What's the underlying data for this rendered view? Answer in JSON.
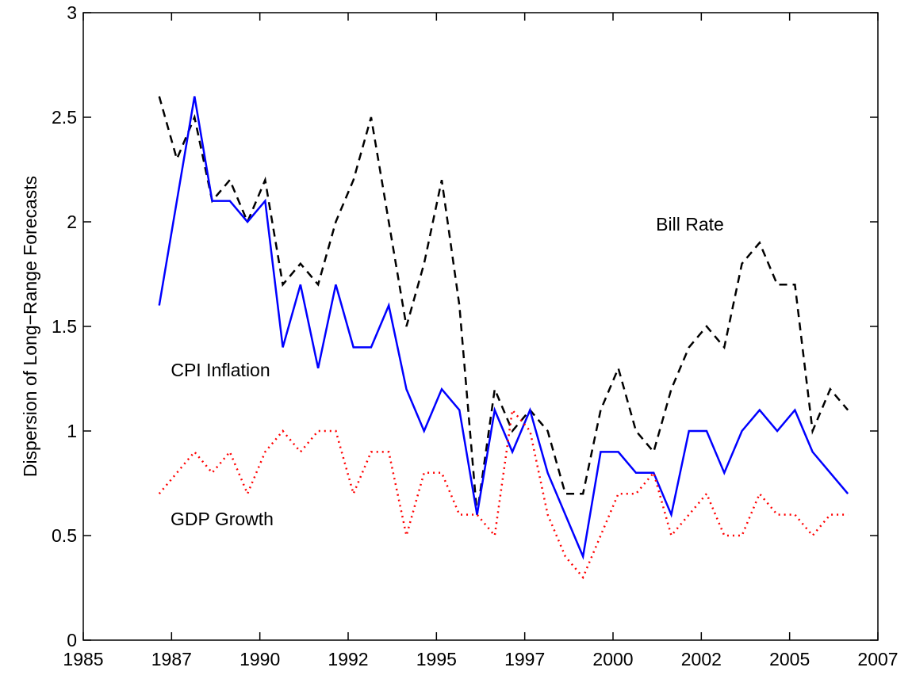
{
  "chart_data": {
    "type": "line",
    "y_label": "Dispersion of Long−Range Forecasts",
    "x": [
      1987.15,
      1987.65,
      1988.15,
      1988.65,
      1989.15,
      1989.65,
      1990.15,
      1990.65,
      1991.15,
      1991.65,
      1992.15,
      1992.65,
      1993.15,
      1993.65,
      1994.15,
      1994.65,
      1995.15,
      1995.65,
      1996.15,
      1996.65,
      1997.15,
      1997.65,
      1998.15,
      1998.65,
      1999.15,
      1999.65,
      2000.15,
      2000.65,
      2001.15,
      2001.65,
      2002.15,
      2002.65,
      2003.15,
      2003.65,
      2004.15,
      2004.65,
      2005.15,
      2005.65,
      2006.15,
      2006.65
    ],
    "series": [
      {
        "name": "Bill Rate",
        "color": "#000000",
        "style": "dashed",
        "values": [
          2.6,
          2.3,
          2.5,
          2.1,
          2.2,
          2.0,
          2.2,
          1.7,
          1.8,
          1.7,
          2.0,
          2.2,
          2.5,
          2.0,
          1.5,
          1.8,
          2.2,
          1.6,
          0.6,
          1.2,
          1.0,
          1.1,
          1.0,
          0.7,
          0.7,
          1.1,
          1.3,
          1.0,
          0.9,
          1.2,
          1.4,
          1.5,
          1.4,
          1.8,
          1.9,
          1.7,
          1.7,
          1.0,
          1.2,
          1.1
        ]
      },
      {
        "name": "CPI Inflation",
        "color": "#0000ff",
        "style": "solid",
        "values": [
          1.6,
          2.1,
          2.6,
          2.1,
          2.1,
          2.0,
          2.1,
          1.4,
          1.7,
          1.3,
          1.7,
          1.4,
          1.4,
          1.6,
          1.2,
          1.0,
          1.2,
          1.1,
          0.6,
          1.1,
          0.9,
          1.1,
          0.8,
          0.6,
          0.4,
          0.9,
          0.9,
          0.8,
          0.8,
          0.6,
          1.0,
          1.0,
          0.8,
          1.0,
          1.1,
          1.0,
          1.1,
          0.9,
          0.8,
          0.7
        ]
      },
      {
        "name": "GDP Growth",
        "color": "#ff0000",
        "style": "dotted",
        "values": [
          0.7,
          0.8,
          0.9,
          0.8,
          0.9,
          0.7,
          0.9,
          1.0,
          0.9,
          1.0,
          1.0,
          0.7,
          0.9,
          0.9,
          0.5,
          0.8,
          0.8,
          0.6,
          0.6,
          0.5,
          1.1,
          1.0,
          0.6,
          0.4,
          0.3,
          0.5,
          0.7,
          0.7,
          0.8,
          0.5,
          0.6,
          0.7,
          0.5,
          0.5,
          0.7,
          0.6,
          0.6,
          0.5,
          0.6,
          0.6
        ]
      }
    ],
    "xlim": [
      1985,
      2007.5
    ],
    "xticks": [
      1985,
      {
        "value": 1987.5,
        "label": "1987"
      },
      1990,
      {
        "value": 1992.5,
        "label": "1992"
      },
      1995,
      {
        "value": 1997.5,
        "label": "1997"
      },
      2000,
      {
        "value": 2002.5,
        "label": "2002"
      },
      2005,
      {
        "value": 2007.5,
        "label": "2007"
      }
    ],
    "ylim": [
      0,
      3
    ],
    "yticks": [
      0,
      0.5,
      1,
      1.5,
      2,
      2.5,
      3
    ],
    "grid": false
  }
}
